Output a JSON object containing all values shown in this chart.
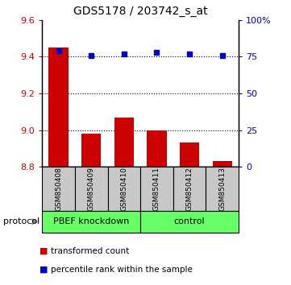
{
  "title": "GDS5178 / 203742_s_at",
  "samples": [
    "GSM850408",
    "GSM850409",
    "GSM850410",
    "GSM850411",
    "GSM850412",
    "GSM850413"
  ],
  "bar_values": [
    9.45,
    8.98,
    9.07,
    9.0,
    8.93,
    8.83
  ],
  "bar_baseline": 8.8,
  "blue_values": [
    79,
    76,
    77,
    78,
    77,
    76
  ],
  "ylim_left": [
    8.8,
    9.6
  ],
  "ylim_right": [
    0,
    100
  ],
  "yticks_left": [
    8.8,
    9.0,
    9.2,
    9.4,
    9.6
  ],
  "yticks_right": [
    0,
    25,
    50,
    75,
    100
  ],
  "ytick_labels_right": [
    "0",
    "25",
    "50",
    "75",
    "100%"
  ],
  "dotted_lines": [
    9.0,
    9.2,
    9.4
  ],
  "bar_color": "#cc0000",
  "blue_color": "#0000cc",
  "groups": [
    {
      "label": "PBEF knockdown",
      "indices": [
        0,
        1,
        2
      ],
      "color": "#66ee66"
    },
    {
      "label": "control",
      "indices": [
        3,
        4,
        5
      ],
      "color": "#66ee66"
    }
  ],
  "protocol_label": "protocol",
  "legend_items": [
    {
      "color": "#cc0000",
      "marker": "s",
      "label": "transformed count"
    },
    {
      "color": "#0000cc",
      "marker": "s",
      "label": "percentile rank within the sample"
    }
  ],
  "bar_width": 0.6,
  "sample_box_color": "#c8c8c8",
  "group_box_color": "#66ff66"
}
